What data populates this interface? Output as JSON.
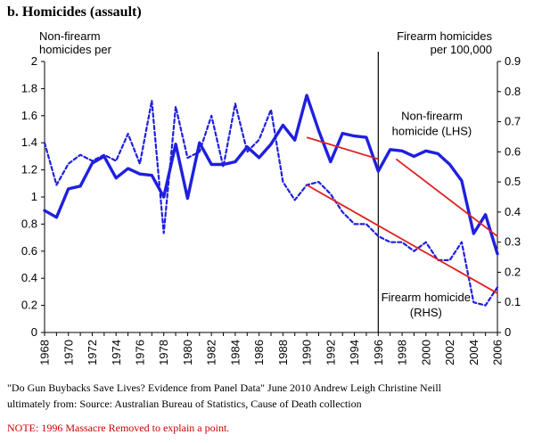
{
  "title": "b.  Homicides (assault)",
  "left_axis_label": [
    "Non-firearm",
    "homicides per"
  ],
  "right_axis_label": [
    "Firearm homicides",
    "per 100,000"
  ],
  "source_line1": "\"Do Gun Buybacks Save Lives? Evidence from Panel Data\" June 2010 Andrew Leigh Christine Neill",
  "source_line2": "ultimately from: Source: Australian Bureau of Statistics, Cause of Death collection",
  "note": "NOTE: 1996 Massacre Removed to explain a point.",
  "colors": {
    "series": "#1f1fe0",
    "trend": "#e02020",
    "axis": "#000000"
  },
  "chart_data": {
    "type": "line",
    "title": "Homicides (assault)",
    "x": [
      1968,
      1969,
      1970,
      1971,
      1972,
      1973,
      1974,
      1975,
      1976,
      1977,
      1978,
      1979,
      1980,
      1981,
      1982,
      1983,
      1984,
      1985,
      1986,
      1987,
      1988,
      1989,
      1990,
      1991,
      1992,
      1993,
      1994,
      1995,
      1996,
      1997,
      1998,
      1999,
      2000,
      2001,
      2002,
      2003,
      2004,
      2005,
      2006
    ],
    "x_ticks": [
      "1968",
      "1970",
      "1972",
      "1974",
      "1976",
      "1978",
      "1980",
      "1982",
      "1984",
      "1986",
      "1988",
      "1990",
      "1992",
      "1994",
      "1996",
      "1998",
      "2000",
      "2002",
      "2004",
      "2006"
    ],
    "xlim": [
      1968,
      2006
    ],
    "ylim_left": [
      0,
      2
    ],
    "ylim_right": [
      0,
      0.9
    ],
    "y_ticks_left": [
      "0",
      "0.2",
      "0.4",
      "0.6",
      "0.8",
      "1",
      "1.2",
      "1.4",
      "1.6",
      "1.8",
      "2"
    ],
    "y_ticks_right": [
      "0",
      "0.1",
      "0.2",
      "0.3",
      "0.4",
      "0.5",
      "0.6",
      "0.7",
      "0.8",
      "0.9"
    ],
    "series": [
      {
        "name": "Non-firearm homicide (LHS)",
        "axis": "left",
        "style": "solid",
        "values": [
          0.9,
          0.85,
          1.06,
          1.08,
          1.25,
          1.3,
          1.14,
          1.21,
          1.17,
          1.16,
          1.0,
          1.39,
          0.99,
          1.4,
          1.24,
          1.24,
          1.26,
          1.37,
          1.29,
          1.39,
          1.53,
          1.42,
          1.75,
          1.49,
          1.26,
          1.47,
          1.45,
          1.44,
          1.19,
          1.35,
          1.34,
          1.3,
          1.34,
          1.32,
          1.24,
          1.12,
          0.73,
          0.87,
          0.58
        ]
      },
      {
        "name": "Firearm homicide (RHS)",
        "axis": "right",
        "style": "dashed",
        "values": [
          0.63,
          0.49,
          0.56,
          0.59,
          0.57,
          0.59,
          0.57,
          0.66,
          0.56,
          0.77,
          0.33,
          0.75,
          0.58,
          0.6,
          0.72,
          0.55,
          0.76,
          0.6,
          0.64,
          0.74,
          0.5,
          0.44,
          0.49,
          0.5,
          0.46,
          0.4,
          0.36,
          0.36,
          0.32,
          0.3,
          0.3,
          0.27,
          0.3,
          0.24,
          0.24,
          0.3,
          0.1,
          0.09,
          0.15
        ]
      }
    ],
    "trendlines": [
      {
        "axis": "left",
        "x": [
          1990,
          1996
        ],
        "y": [
          1.44,
          1.28
        ]
      },
      {
        "axis": "left",
        "x": [
          1997.5,
          2006
        ],
        "y": [
          1.28,
          0.71
        ]
      },
      {
        "axis": "right",
        "x": [
          1990,
          2006
        ],
        "y": [
          0.49,
          0.13
        ]
      }
    ],
    "vline_x": 1996,
    "annotations": [
      {
        "text": [
          "Non-firearm",
          "homicide (LHS)"
        ],
        "x": 2000.5,
        "y_left": 1.57
      },
      {
        "text": [
          "Firearm homicide",
          "(RHS)"
        ],
        "x": 2000,
        "y_left": 0.23
      }
    ]
  }
}
